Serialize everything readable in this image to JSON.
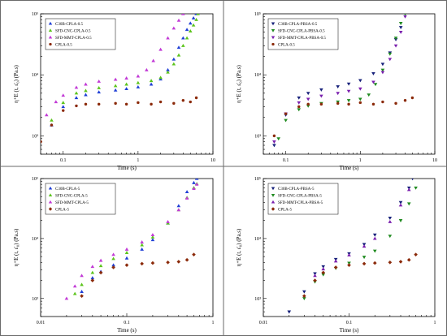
{
  "chart_data": [
    {
      "type": "scatter",
      "xscale": "log",
      "yscale": "log",
      "xlim": [
        0.05,
        10
      ],
      "ylim": [
        500,
        100000
      ],
      "xticks": [
        {
          "value": 0.1,
          "label": "0.1"
        },
        {
          "value": 1,
          "label": "1"
        },
        {
          "value": 10,
          "label": "10"
        }
      ],
      "yticks": [
        {
          "value": 1000,
          "label": "10³"
        },
        {
          "value": 10000,
          "label": "10⁴"
        },
        {
          "value": 100000,
          "label": "10⁵"
        }
      ],
      "xlabel": "Time (s)",
      "ylabel": "η⁺E (t, ε̇₀) (Pa.s)",
      "grid": false,
      "legend_position": "top-left",
      "series": [
        {
          "name": "C30B-CPLA-0.5",
          "color": "#1f3fd6",
          "marker": "triangle",
          "x": [
            0.07,
            0.1,
            0.15,
            0.2,
            0.3,
            0.5,
            0.7,
            1,
            1.5,
            2,
            2.5,
            3,
            3.5,
            4,
            4.5,
            5,
            5.5,
            6
          ],
          "y": [
            1500,
            3000,
            4200,
            4700,
            5200,
            5600,
            5900,
            6300,
            7000,
            8500,
            12000,
            18000,
            28000,
            40000,
            55000,
            70000,
            85000,
            100000
          ]
        },
        {
          "name": "SFD-CNC-CPLA-0.5",
          "color": "#5cc41c",
          "marker": "triangle",
          "x": [
            0.07,
            0.1,
            0.15,
            0.2,
            0.3,
            0.5,
            0.7,
            1,
            1.5,
            2,
            2.5,
            3,
            3.5,
            4,
            4.5,
            5,
            5.5,
            6,
            6.3
          ],
          "y": [
            1800,
            3500,
            5000,
            5500,
            6100,
            6600,
            7000,
            7400,
            8000,
            9000,
            11000,
            15000,
            21000,
            30000,
            40000,
            52000,
            65000,
            80000,
            100000
          ]
        },
        {
          "name": "SFD-MMT-CPLA-0.5",
          "color": "#c23ad6",
          "marker": "triangle",
          "x": [
            0.06,
            0.08,
            0.1,
            0.15,
            0.2,
            0.3,
            0.5,
            0.7,
            1,
            1.3,
            1.6,
            2,
            2.5,
            3,
            3.5,
            4
          ],
          "y": [
            2200,
            3600,
            4600,
            6200,
            7000,
            7800,
            8400,
            8800,
            9500,
            12000,
            17000,
            26000,
            40000,
            58000,
            78000,
            100000
          ]
        },
        {
          "name": "CPLA-0.5",
          "color": "#8b2a0a",
          "marker": "circle",
          "x": [
            0.05,
            0.07,
            0.1,
            0.15,
            0.2,
            0.3,
            0.5,
            0.7,
            1,
            1.5,
            2,
            3,
            4,
            5,
            6
          ],
          "y": [
            800,
            1500,
            2600,
            3100,
            3300,
            3300,
            3400,
            3300,
            3500,
            3300,
            3600,
            3400,
            3800,
            3600,
            4200
          ]
        }
      ]
    },
    {
      "type": "scatter",
      "xscale": "log",
      "yscale": "log",
      "xlim": [
        0.05,
        10
      ],
      "ylim": [
        500,
        100000
      ],
      "xticks": [
        {
          "value": 0.1,
          "label": "0.1"
        },
        {
          "value": 1,
          "label": "1"
        },
        {
          "value": 10,
          "label": "10"
        }
      ],
      "yticks": [
        {
          "value": 1000,
          "label": "10³"
        },
        {
          "value": 10000,
          "label": "10⁴"
        },
        {
          "value": 100000,
          "label": "10⁵"
        }
      ],
      "xlabel": "Time (s)",
      "ylabel": "η⁺E (t, ε̇₀) (Pa.s)",
      "grid": false,
      "legend_position": "top-left",
      "series": [
        {
          "name": "C30B-CPLA-PBSA-0.5",
          "color": "#16207a",
          "marker": "triangle-down",
          "x": [
            0.07,
            0.1,
            0.15,
            0.2,
            0.3,
            0.5,
            0.7,
            1,
            1.5,
            2,
            2.5,
            3,
            3.5,
            4
          ],
          "y": [
            700,
            2200,
            4200,
            5000,
            5700,
            6400,
            7100,
            8100,
            10500,
            15000,
            23000,
            38000,
            60000,
            100000
          ]
        },
        {
          "name": "SFD-CNC-CPLA-PBSA-0.5",
          "color": "#1f8a1f",
          "marker": "triangle-down",
          "x": [
            0.08,
            0.1,
            0.15,
            0.2,
            0.3,
            0.5,
            0.7,
            1,
            1.3,
            1.6,
            2,
            2.5,
            3,
            3.5,
            4
          ],
          "y": [
            900,
            1800,
            2700,
            3100,
            3400,
            3600,
            3800,
            4000,
            4700,
            7000,
            12000,
            22000,
            40000,
            70000,
            100000
          ]
        },
        {
          "name": "SFD-MMT-CPLA-PBSA-0.5",
          "color": "#7a1fae",
          "marker": "triangle-down",
          "x": [
            0.07,
            0.1,
            0.15,
            0.2,
            0.3,
            0.5,
            0.7,
            1,
            1.5,
            2,
            2.5,
            3,
            3.5,
            4
          ],
          "y": [
            800,
            2300,
            3500,
            4000,
            4500,
            5000,
            5400,
            5900,
            7600,
            11000,
            18000,
            30000,
            50000,
            90000
          ]
        },
        {
          "name": "CPLA-0.5",
          "color": "#8b2a0a",
          "marker": "circle",
          "x": [
            0.07,
            0.1,
            0.15,
            0.2,
            0.3,
            0.5,
            0.7,
            1,
            1.5,
            2,
            3,
            4,
            5
          ],
          "y": [
            1000,
            2300,
            3000,
            3300,
            3300,
            3400,
            3300,
            3500,
            3300,
            3600,
            3400,
            3800,
            4200
          ]
        }
      ]
    },
    {
      "type": "scatter",
      "xscale": "log",
      "yscale": "log",
      "xlim": [
        0.01,
        1
      ],
      "ylim": [
        500,
        100000
      ],
      "xticks": [
        {
          "value": 0.01,
          "label": "0.01"
        },
        {
          "value": 0.1,
          "label": "0.1"
        },
        {
          "value": 1,
          "label": "1"
        }
      ],
      "yticks": [
        {
          "value": 1000,
          "label": "10³"
        },
        {
          "value": 10000,
          "label": "10⁴"
        },
        {
          "value": 100000,
          "label": "10⁵"
        }
      ],
      "xlabel": "Time (s)",
      "ylabel": "η⁺E (t, ε̇₀) (Pa.s)",
      "grid": false,
      "legend_position": "top-left",
      "series": [
        {
          "name": "C30B-CPLA-5",
          "color": "#1f3fd6",
          "marker": "triangle",
          "x": [
            0.03,
            0.04,
            0.05,
            0.07,
            0.1,
            0.15,
            0.2,
            0.3,
            0.4,
            0.5,
            0.6,
            0.65
          ],
          "y": [
            1300,
            2200,
            2800,
            3600,
            4700,
            6600,
            9500,
            18000,
            35000,
            60000,
            85000,
            100000
          ]
        },
        {
          "name": "SFD-CNC-CPLA-5",
          "color": "#5cc41c",
          "marker": "triangle",
          "x": [
            0.025,
            0.03,
            0.04,
            0.05,
            0.07,
            0.1,
            0.15,
            0.2,
            0.3,
            0.4,
            0.5,
            0.6,
            0.65
          ],
          "y": [
            1200,
            1700,
            2700,
            3500,
            4600,
            5800,
            7800,
            10500,
            18000,
            30000,
            48000,
            70000,
            82000
          ]
        },
        {
          "name": "SFD-MMT-CPLA-5",
          "color": "#c23ad6",
          "marker": "triangle",
          "x": [
            0.02,
            0.025,
            0.03,
            0.04,
            0.05,
            0.07,
            0.1,
            0.15,
            0.2,
            0.3,
            0.4,
            0.5,
            0.6,
            0.65
          ],
          "y": [
            1000,
            1600,
            2400,
            3400,
            4300,
            5400,
            6600,
            8700,
            11500,
            19000,
            30000,
            47000,
            68000,
            80000
          ]
        },
        {
          "name": "CPLA-5",
          "color": "#8b2a0a",
          "marker": "diamond",
          "x": [
            0.03,
            0.04,
            0.05,
            0.07,
            0.1,
            0.15,
            0.2,
            0.3,
            0.4,
            0.5,
            0.6
          ],
          "y": [
            1100,
            2000,
            2700,
            3300,
            3600,
            3800,
            3900,
            4000,
            4100,
            4400,
            5400
          ]
        }
      ]
    },
    {
      "type": "scatter",
      "xscale": "log",
      "yscale": "log",
      "xlim": [
        0.01,
        1
      ],
      "ylim": [
        500,
        100000
      ],
      "xticks": [
        {
          "value": 0.01,
          "label": "0.01"
        },
        {
          "value": 0.1,
          "label": "0.1"
        },
        {
          "value": 1,
          "label": "1"
        }
      ],
      "yticks": [
        {
          "value": 1000,
          "label": "10³"
        },
        {
          "value": 10000,
          "label": "10⁴"
        },
        {
          "value": 100000,
          "label": "10⁵"
        }
      ],
      "xlabel": "Time (s)",
      "ylabel": "η⁺E (t, ε̇₀) (Pa.s)",
      "grid": false,
      "legend_position": "top-left",
      "series": [
        {
          "name": "C30B-CPLA-PBSA-5",
          "color": "#16207a",
          "marker": "triangle-down",
          "x": [
            0.02,
            0.03,
            0.04,
            0.05,
            0.07,
            0.1,
            0.15,
            0.2,
            0.3,
            0.4,
            0.5,
            0.55
          ],
          "y": [
            600,
            1300,
            2600,
            3400,
            4500,
            5600,
            8000,
            11500,
            22000,
            40000,
            70000,
            100000
          ]
        },
        {
          "name": "SFD-CNC-CPLA-PBSA-5",
          "color": "#1f8a1f",
          "marker": "triangle-down",
          "x": [
            0.03,
            0.04,
            0.05,
            0.07,
            0.1,
            0.15,
            0.2,
            0.3,
            0.4,
            0.5,
            0.6
          ],
          "y": [
            1000,
            1900,
            2500,
            3200,
            3900,
            4900,
            6200,
            11000,
            20000,
            38000,
            70000
          ]
        },
        {
          "name": "SFD-MMT-CPLA-PBSA-5",
          "color": "#7a1fae",
          "marker": "triangle",
          "x": [
            0.04,
            0.05,
            0.07,
            0.1,
            0.15,
            0.2,
            0.3,
            0.4,
            0.5
          ],
          "y": [
            2400,
            3100,
            4200,
            5300,
            7400,
            10000,
            19000,
            36000,
            65000
          ]
        },
        {
          "name": "CPLA-5",
          "color": "#8b2a0a",
          "marker": "diamond",
          "x": [
            0.03,
            0.04,
            0.05,
            0.07,
            0.1,
            0.15,
            0.2,
            0.3,
            0.4,
            0.5,
            0.6
          ],
          "y": [
            1100,
            2000,
            2700,
            3300,
            3600,
            3800,
            3900,
            4000,
            4100,
            4400,
            5400
          ]
        }
      ]
    }
  ]
}
